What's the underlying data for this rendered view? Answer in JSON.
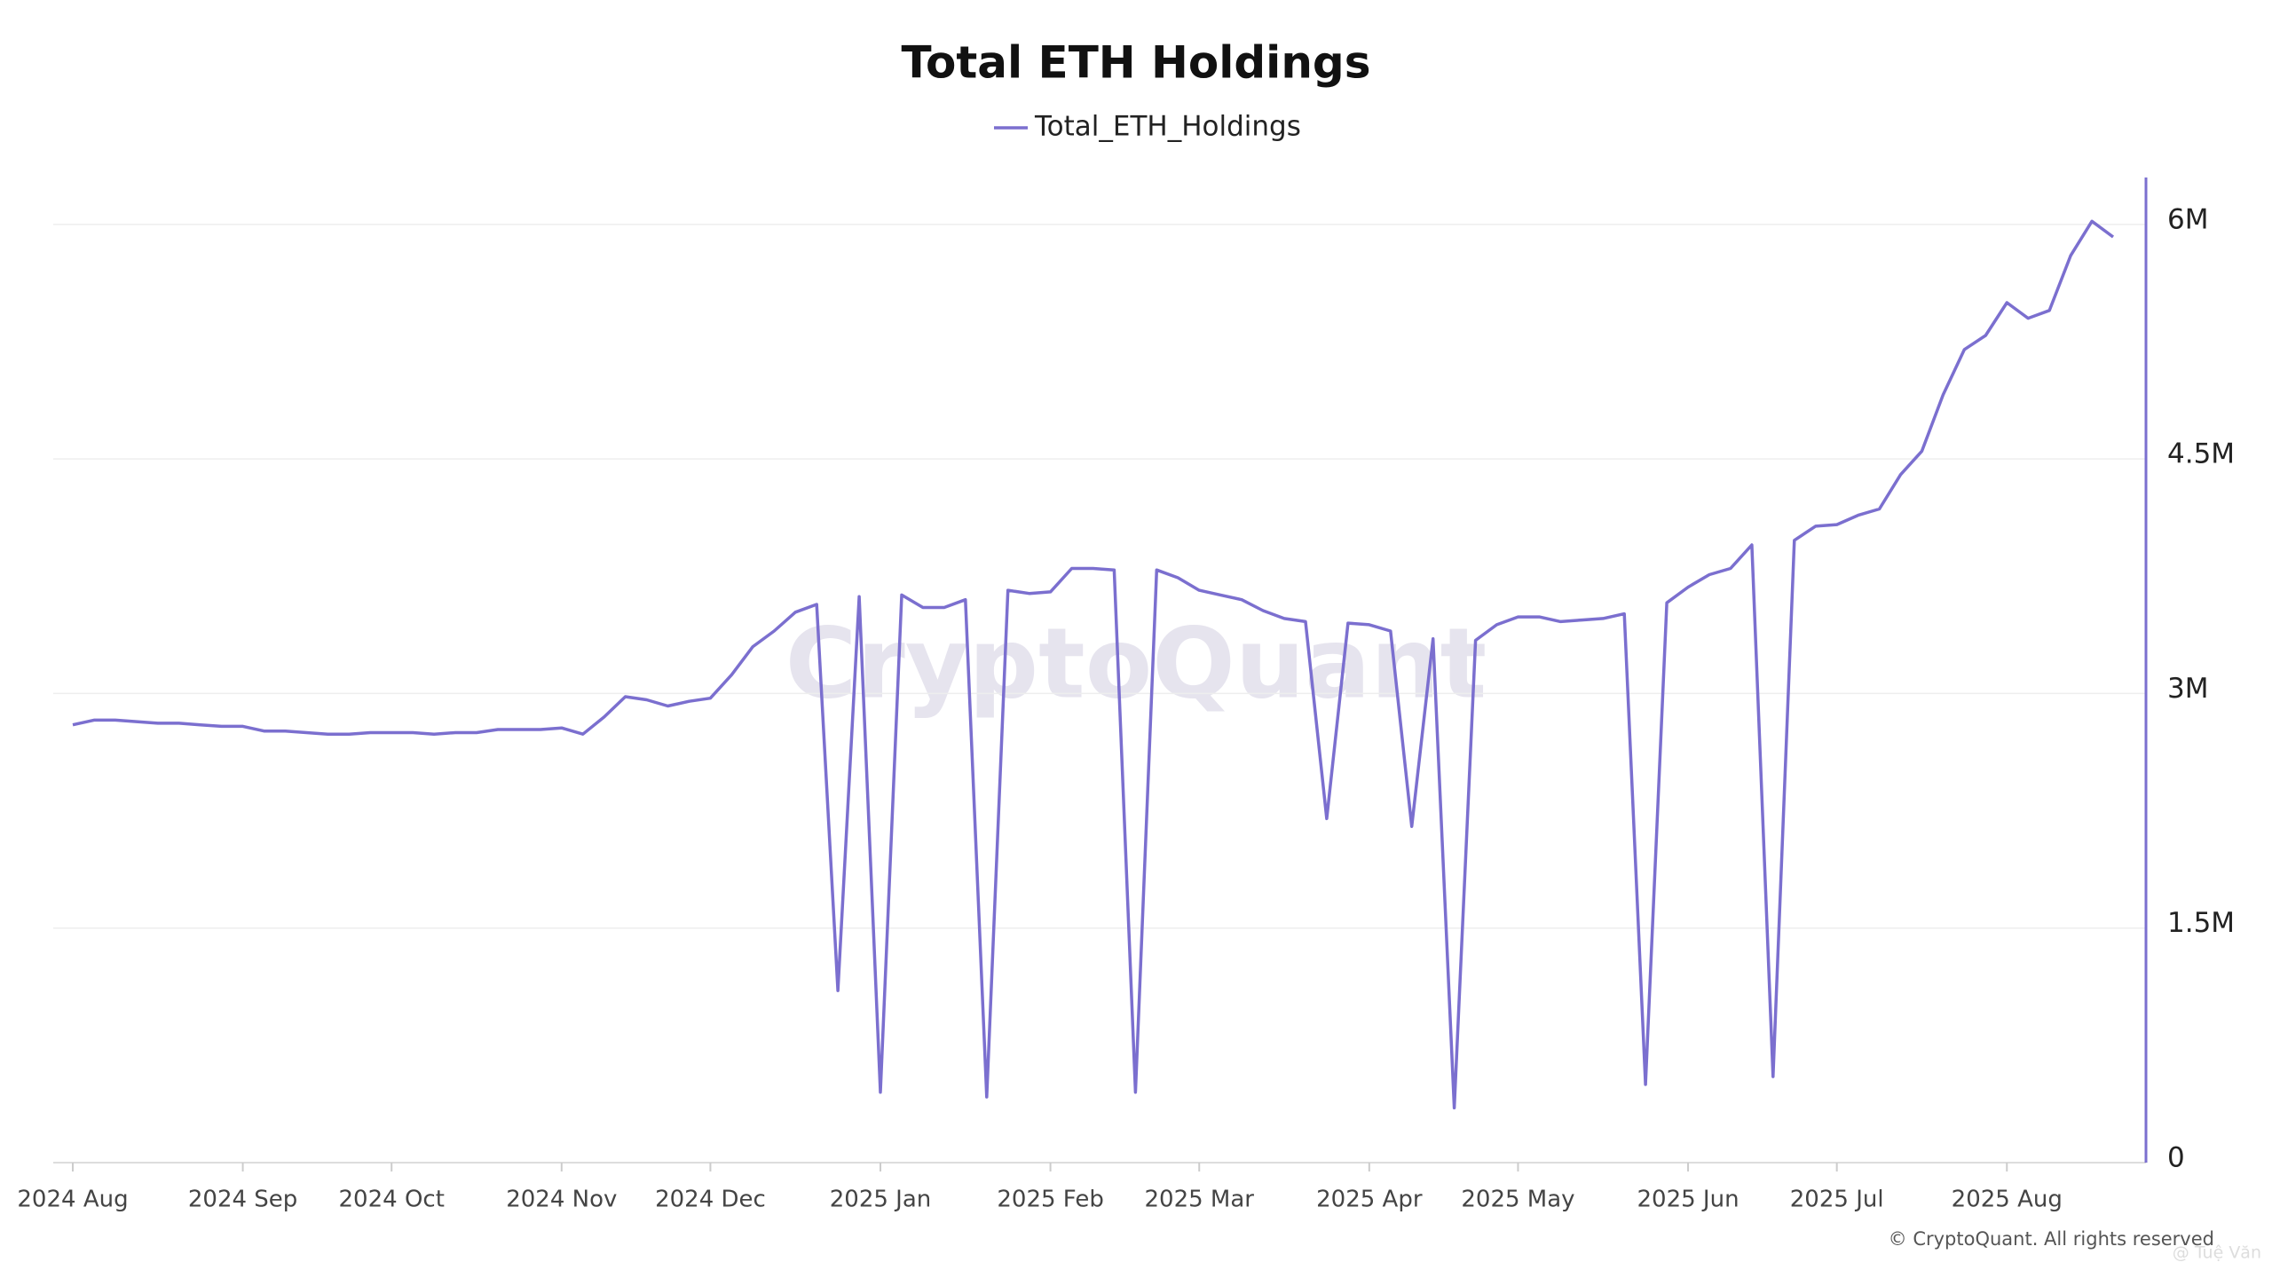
{
  "chart_data": {
    "type": "line",
    "title": "Total ETH Holdings",
    "watermark": "CryptoQuant",
    "footer": "© CryptoQuant. All rights reserved",
    "credit": "@ Tuệ Văn",
    "categories": [
      "2024 Aug",
      null,
      null,
      null,
      null,
      null,
      null,
      null,
      "2024 Sep",
      null,
      null,
      null,
      null,
      null,
      null,
      "2024 Oct",
      null,
      null,
      null,
      null,
      null,
      null,
      null,
      "2024 Nov",
      null,
      null,
      null,
      null,
      null,
      null,
      "2024 Dec",
      null,
      null,
      null,
      null,
      null,
      null,
      null,
      "2025 Jan",
      null,
      null,
      null,
      null,
      null,
      null,
      null,
      "2025 Feb",
      null,
      null,
      null,
      null,
      null,
      null,
      "2025 Mar",
      null,
      null,
      null,
      null,
      null,
      null,
      null,
      "2025 Apr",
      null,
      null,
      null,
      null,
      null,
      null,
      "2025 May",
      null,
      null,
      null,
      null,
      null,
      null,
      null,
      "2025 Jun",
      null,
      null,
      null,
      null,
      null,
      null,
      "2025 Jul",
      null,
      null,
      null,
      null,
      null,
      null,
      null,
      "2025 Aug",
      null,
      null,
      null,
      null,
      null
    ],
    "series": [
      {
        "name": "Total_ETH_Holdings",
        "color": "#7b6fcf",
        "values": [
          2800000,
          2830000,
          2830000,
          2820000,
          2810000,
          2810000,
          2800000,
          2790000,
          2790000,
          2760000,
          2760000,
          2750000,
          2740000,
          2740000,
          2750000,
          2750000,
          2750000,
          2740000,
          2750000,
          2750000,
          2770000,
          2770000,
          2770000,
          2780000,
          2740000,
          2850000,
          2980000,
          2960000,
          2920000,
          2950000,
          2970000,
          3120000,
          3300000,
          3400000,
          3520000,
          3570000,
          1100000,
          3620000,
          450000,
          3630000,
          3550000,
          3550000,
          3600000,
          420000,
          3660000,
          3640000,
          3650000,
          3800000,
          3800000,
          3790000,
          450000,
          3790000,
          3740000,
          3660000,
          3630000,
          3600000,
          3530000,
          3480000,
          3460000,
          2200000,
          3450000,
          3440000,
          3400000,
          2150000,
          3350000,
          350000,
          3340000,
          3440000,
          3490000,
          3490000,
          3460000,
          3470000,
          3480000,
          3510000,
          500000,
          3580000,
          3680000,
          3760000,
          3800000,
          3950000,
          550000,
          3980000,
          4070000,
          4080000,
          4140000,
          4180000,
          4400000,
          4550000,
          4910000,
          5200000,
          5290000,
          5500000,
          5400000,
          5450000,
          5800000,
          6020000,
          5920000
        ]
      }
    ],
    "ylim": [
      0,
      6300000
    ],
    "yticks": [
      0,
      {
        "value": 1500000,
        "label": "1.5M"
      },
      {
        "value": 3000000,
        "label": "3M"
      },
      {
        "value": 4500000,
        "label": "4.5M"
      },
      {
        "value": 6000000,
        "label": "6M"
      }
    ],
    "y_axis_side": "right",
    "grid": true,
    "legend": "top"
  }
}
